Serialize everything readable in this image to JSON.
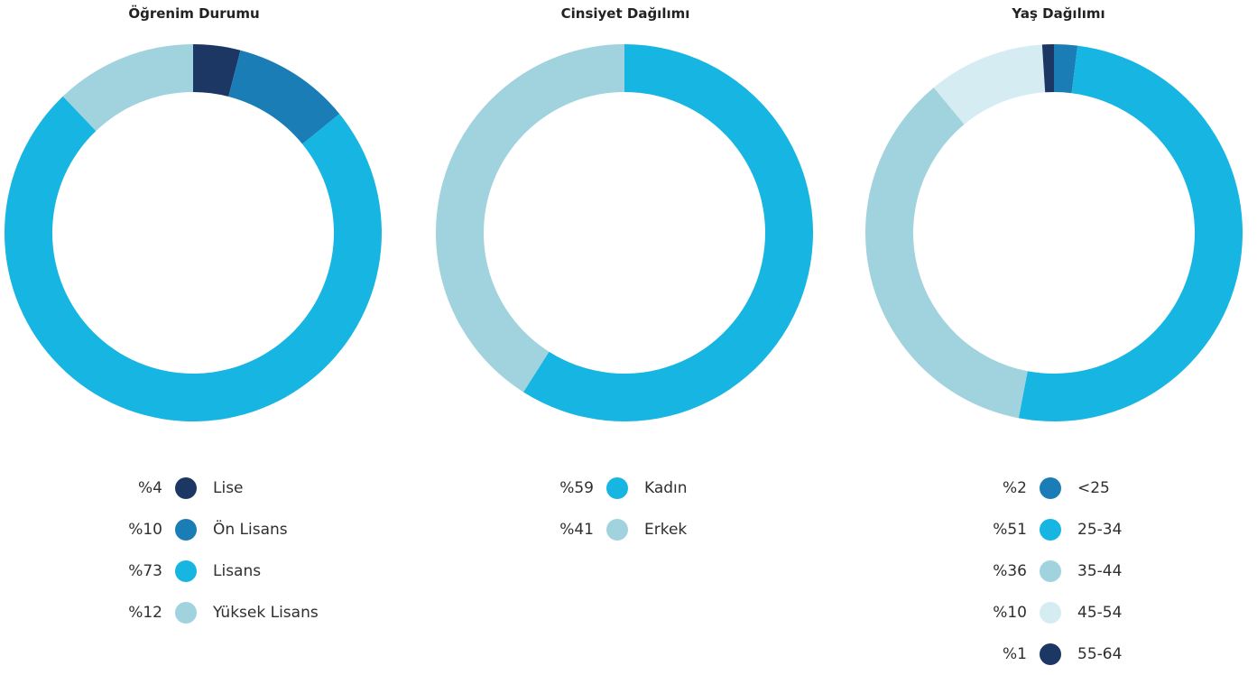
{
  "chart_data": [
    {
      "type": "pie",
      "title": "Öğrenim Durumu",
      "slices": [
        {
          "label": "Lise",
          "pct_label": "%4",
          "value": 4,
          "color": "#1d3764"
        },
        {
          "label": "Ön Lisans",
          "pct_label": "%10",
          "value": 10,
          "color": "#1a7db6"
        },
        {
          "label": "Lisans",
          "pct_label": "%73",
          "value": 73,
          "color": "#17b5e2"
        },
        {
          "label": "Yüksek Lisans",
          "pct_label": "%12",
          "value": 12,
          "color": "#a1d3de"
        }
      ]
    },
    {
      "type": "pie",
      "title": "Cinsiyet Dağılımı",
      "slices": [
        {
          "label": "Kadın",
          "pct_label": "%59",
          "value": 59,
          "color": "#17b5e2"
        },
        {
          "label": "Erkek",
          "pct_label": "%41",
          "value": 41,
          "color": "#a1d3de"
        }
      ]
    },
    {
      "type": "pie",
      "title": "Yaş Dağılımı",
      "slices": [
        {
          "label": "<25",
          "pct_label": "%2",
          "value": 2,
          "color": "#1a7db6"
        },
        {
          "label": "25-34",
          "pct_label": "%51",
          "value": 51,
          "color": "#17b5e2"
        },
        {
          "label": "35-44",
          "pct_label": "%36",
          "value": 36,
          "color": "#a1d3de"
        },
        {
          "label": "45-54",
          "pct_label": "%10",
          "value": 10,
          "color": "#d5edf2"
        },
        {
          "label": "55-64",
          "pct_label": "%1",
          "value": 1,
          "color": "#1d3764"
        }
      ]
    }
  ]
}
